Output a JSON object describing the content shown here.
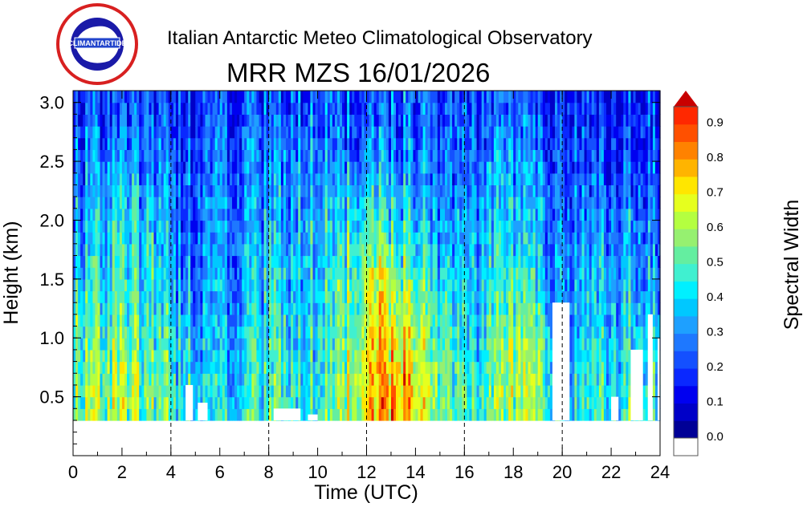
{
  "header": {
    "title": "Italian Antarctic Meteo Climatological Observatory",
    "subtitle": "MRR MZS 16/01/2026",
    "logo_text": [
      "OSSERVATORIO METEO-CLIMATOLOGICO ANTARTICO",
      "CLIMANTARTIDE",
      "ITALIA"
    ]
  },
  "chart_data": {
    "type": "heatmap",
    "xlabel": "Time (UTC)",
    "ylabel": "Height (km)",
    "colorbar_label": "Spectral Width",
    "xlim": [
      0,
      24
    ],
    "ylim": [
      0,
      3.1
    ],
    "xticks": [
      "0",
      "2",
      "4",
      "6",
      "8",
      "10",
      "12",
      "14",
      "16",
      "18",
      "20",
      "22",
      "24"
    ],
    "yticks": [
      "0.5",
      "1.0",
      "1.5",
      "2.0",
      "2.5",
      "3.0"
    ],
    "colorbar_ticks": [
      "0.0",
      "0.1",
      "0.2",
      "0.3",
      "0.4",
      "0.5",
      "0.6",
      "0.7",
      "0.8",
      "0.9"
    ],
    "colorbar_range": [
      0,
      0.95
    ],
    "colorbar_step": 0.05,
    "colorbar_colors": [
      "#000096",
      "#0000c8",
      "#0000f0",
      "#0a28ff",
      "#1450ff",
      "#1e78ff",
      "#1ea0ff",
      "#00c8ff",
      "#00f0ff",
      "#40f0d0",
      "#64eea0",
      "#96f070",
      "#b4ff40",
      "#e6ff1e",
      "#ffe600",
      "#ffb400",
      "#ff8200",
      "#ff5000",
      "#ff2800",
      "#c80000"
    ],
    "vertical_dashed_lines_at_hours": [
      4,
      8,
      12,
      16,
      20
    ],
    "data_bottom_km": 0.3,
    "heights_km": [
      0.5,
      1.0,
      1.5,
      2.0,
      2.5,
      3.0
    ],
    "hours": [
      0,
      1,
      2,
      3,
      4,
      5,
      6,
      7,
      8,
      9,
      10,
      11,
      12,
      13,
      14,
      15,
      16,
      17,
      18,
      19,
      20,
      21,
      22,
      23
    ],
    "values": [
      [
        0.55,
        0.6,
        0.55,
        0.5,
        0.45,
        0.35,
        0.4,
        0.45,
        0.5,
        0.45,
        0.5,
        0.65,
        0.75,
        0.8,
        0.6,
        0.5,
        0.45,
        0.55,
        0.6,
        0.5,
        0.4,
        0.45,
        0.45,
        0.5
      ],
      [
        0.5,
        0.55,
        0.5,
        0.45,
        0.4,
        0.3,
        0.35,
        0.4,
        0.45,
        0.4,
        0.5,
        0.6,
        0.7,
        0.7,
        0.55,
        0.45,
        0.4,
        0.5,
        0.55,
        0.45,
        0.35,
        0.4,
        0.4,
        0.45
      ],
      [
        0.4,
        0.45,
        0.45,
        0.4,
        0.3,
        0.25,
        0.3,
        0.35,
        0.4,
        0.4,
        0.45,
        0.55,
        0.6,
        0.55,
        0.45,
        0.4,
        0.35,
        0.45,
        0.45,
        0.35,
        0.3,
        0.35,
        0.35,
        0.35
      ],
      [
        0.35,
        0.4,
        0.4,
        0.35,
        0.25,
        0.25,
        0.3,
        0.3,
        0.35,
        0.4,
        0.4,
        0.45,
        0.45,
        0.4,
        0.35,
        0.3,
        0.3,
        0.35,
        0.35,
        0.3,
        0.25,
        0.3,
        0.3,
        0.3
      ],
      [
        0.25,
        0.3,
        0.3,
        0.25,
        0.2,
        0.2,
        0.25,
        0.25,
        0.3,
        0.3,
        0.3,
        0.3,
        0.3,
        0.3,
        0.25,
        0.25,
        0.25,
        0.3,
        0.3,
        0.25,
        0.2,
        0.2,
        0.2,
        0.25
      ],
      [
        0.2,
        0.2,
        0.2,
        0.2,
        0.15,
        0.15,
        0.2,
        0.2,
        0.2,
        0.25,
        0.25,
        0.2,
        0.2,
        0.25,
        0.2,
        0.2,
        0.2,
        0.2,
        0.2,
        0.2,
        0.15,
        0.15,
        0.15,
        0.2
      ]
    ],
    "no_data_regions": [
      [
        4.6,
        4.9,
        0.6
      ],
      [
        5.1,
        5.5,
        0.45
      ],
      [
        8.2,
        9.3,
        0.4
      ],
      [
        9.6,
        10.0,
        0.35
      ],
      [
        19.6,
        20.3,
        1.3
      ],
      [
        22.0,
        22.3,
        0.5
      ],
      [
        22.8,
        23.3,
        0.9
      ],
      [
        23.5,
        23.7,
        1.2
      ],
      [
        23.9,
        24.0,
        1.0
      ]
    ],
    "grid": false,
    "legend": "colorbar-right"
  }
}
